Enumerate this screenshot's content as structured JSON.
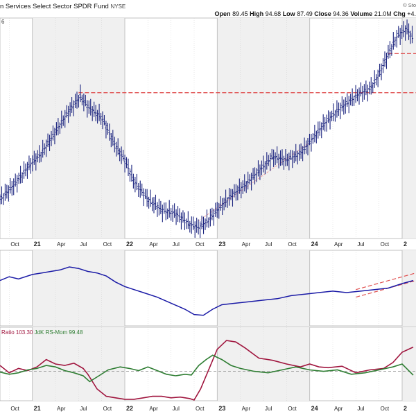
{
  "header": {
    "title": "n Services Select Sector SPDR Fund",
    "exchange": "NYSE",
    "watermark": "© Sto",
    "open_label": "Open",
    "open": "89.45",
    "high_label": "High",
    "high": "94.68",
    "low_label": "Low",
    "low": "87.49",
    "close_label": "Close",
    "close": "94.36",
    "volume_label": "Volume",
    "volume": "21.0M",
    "chg_label": "Chg",
    "chg": "+4."
  },
  "x_axis": {
    "ticks": [
      {
        "t": -0.25,
        "label": "Oct"
      },
      {
        "t": 0.0,
        "label": "21",
        "year": true
      },
      {
        "t": 0.25,
        "label": "Apr"
      },
      {
        "t": 0.5,
        "label": "Jul"
      },
      {
        "t": 0.75,
        "label": "Oct"
      },
      {
        "t": 1.0,
        "label": "22",
        "year": true
      },
      {
        "t": 1.25,
        "label": "Apr"
      },
      {
        "t": 1.5,
        "label": "Jul"
      },
      {
        "t": 1.75,
        "label": "Oct"
      },
      {
        "t": 2.0,
        "label": "23",
        "year": true
      },
      {
        "t": 2.25,
        "label": "Apr"
      },
      {
        "t": 2.5,
        "label": "Jul"
      },
      {
        "t": 2.75,
        "label": "Oct"
      },
      {
        "t": 3.0,
        "label": "24",
        "year": true
      },
      {
        "t": 3.25,
        "label": "Apr"
      },
      {
        "t": 3.5,
        "label": "Jul"
      },
      {
        "t": 3.75,
        "label": "Oct"
      },
      {
        "t": 4.0,
        "label": "2",
        "year": true
      }
    ]
  },
  "panels": {
    "price": {
      "corner_label": "6"
    },
    "momentum": {
      "ratio_legend": "Ratio 103.30",
      "mom_legend": "JdK RS-Mom 99.48"
    }
  },
  "colors": {
    "price": "#1a237e",
    "rs_line": "#1a1aa6",
    "ratio": "#a0153e",
    "momentum": "#2e7d32",
    "resistance": "#e05050",
    "grid": "#d0d0d0",
    "year_shade": "#f0f0f0"
  },
  "chart_data": [
    {
      "type": "line",
      "name": "price",
      "xlim": [
        -0.35,
        4.15
      ],
      "ylim": [
        40,
        102
      ],
      "points": [
        [
          -0.35,
          51
        ],
        [
          -0.2,
          55
        ],
        [
          -0.05,
          60
        ],
        [
          0.1,
          64
        ],
        [
          0.25,
          70
        ],
        [
          0.4,
          76
        ],
        [
          0.52,
          80
        ],
        [
          0.6,
          77
        ],
        [
          0.75,
          74
        ],
        [
          0.9,
          66
        ],
        [
          1.0,
          62
        ],
        [
          1.1,
          56
        ],
        [
          1.25,
          51
        ],
        [
          1.4,
          48
        ],
        [
          1.55,
          47
        ],
        [
          1.7,
          44
        ],
        [
          1.8,
          43
        ],
        [
          1.9,
          45
        ],
        [
          2.0,
          48
        ],
        [
          2.15,
          52
        ],
        [
          2.3,
          55
        ],
        [
          2.45,
          59
        ],
        [
          2.6,
          63
        ],
        [
          2.75,
          62
        ],
        [
          2.9,
          64
        ],
        [
          3.0,
          67
        ],
        [
          3.15,
          72
        ],
        [
          3.3,
          76
        ],
        [
          3.45,
          79
        ],
        [
          3.55,
          81
        ],
        [
          3.65,
          82
        ],
        [
          3.75,
          86
        ],
        [
          3.85,
          92
        ],
        [
          3.95,
          97
        ],
        [
          4.05,
          99
        ],
        [
          4.12,
          96
        ]
      ],
      "resistance_lines": [
        {
          "from": 0.5,
          "to": 4.15,
          "y": 81
        },
        {
          "from": 3.85,
          "to": 4.15,
          "y": 92
        }
      ],
      "trend_line": {
        "x1": 1.8,
        "y1": 45,
        "x2": 3.0,
        "y2": 67
      }
    },
    {
      "type": "line",
      "name": "rs_line",
      "xlim": [
        -0.35,
        4.15
      ],
      "ylim": [
        0,
        100
      ],
      "points": [
        [
          -0.35,
          60
        ],
        [
          -0.25,
          65
        ],
        [
          -0.15,
          62
        ],
        [
          0.0,
          68
        ],
        [
          0.1,
          70
        ],
        [
          0.2,
          72
        ],
        [
          0.3,
          74
        ],
        [
          0.4,
          78
        ],
        [
          0.5,
          76
        ],
        [
          0.6,
          72
        ],
        [
          0.7,
          70
        ],
        [
          0.8,
          66
        ],
        [
          0.9,
          58
        ],
        [
          1.0,
          52
        ],
        [
          1.1,
          48
        ],
        [
          1.2,
          44
        ],
        [
          1.35,
          38
        ],
        [
          1.5,
          30
        ],
        [
          1.65,
          22
        ],
        [
          1.75,
          15
        ],
        [
          1.85,
          14
        ],
        [
          1.95,
          22
        ],
        [
          2.05,
          28
        ],
        [
          2.2,
          30
        ],
        [
          2.35,
          32
        ],
        [
          2.5,
          34
        ],
        [
          2.65,
          36
        ],
        [
          2.8,
          40
        ],
        [
          2.95,
          42
        ],
        [
          3.1,
          44
        ],
        [
          3.25,
          46
        ],
        [
          3.4,
          44
        ],
        [
          3.55,
          46
        ],
        [
          3.7,
          48
        ],
        [
          3.85,
          50
        ],
        [
          4.0,
          56
        ],
        [
          4.12,
          60
        ]
      ],
      "trend_line": {
        "x1": 3.5,
        "y1": 38,
        "x2": 4.15,
        "y2": 60
      }
    },
    {
      "type": "line",
      "name": "rrg",
      "xlim": [
        -0.35,
        4.15
      ],
      "ylim": [
        96,
        106
      ],
      "baseline": 100,
      "series": [
        {
          "name": "Ratio",
          "points": [
            [
              -0.35,
              100.8
            ],
            [
              -0.25,
              99.8
            ],
            [
              -0.15,
              100.4
            ],
            [
              -0.05,
              100.1
            ],
            [
              0.05,
              100.6
            ],
            [
              0.15,
              101.6
            ],
            [
              0.25,
              101.0
            ],
            [
              0.35,
              100.8
            ],
            [
              0.45,
              101.1
            ],
            [
              0.55,
              100.4
            ],
            [
              0.6,
              99.6
            ],
            [
              0.7,
              97.6
            ],
            [
              0.8,
              96.6
            ],
            [
              0.9,
              96.4
            ],
            [
              1.0,
              96.2
            ],
            [
              1.1,
              96.2
            ],
            [
              1.2,
              96.4
            ],
            [
              1.3,
              96.6
            ],
            [
              1.4,
              96.6
            ],
            [
              1.5,
              96.4
            ],
            [
              1.6,
              96.5
            ],
            [
              1.7,
              96.3
            ],
            [
              1.75,
              96.1
            ],
            [
              1.82,
              97.6
            ],
            [
              1.92,
              100.6
            ],
            [
              2.0,
              103.0
            ],
            [
              2.1,
              104.2
            ],
            [
              2.2,
              104.0
            ],
            [
              2.3,
              103.2
            ],
            [
              2.45,
              101.8
            ],
            [
              2.6,
              101.5
            ],
            [
              2.75,
              101.0
            ],
            [
              2.9,
              100.6
            ],
            [
              3.0,
              101.0
            ],
            [
              3.1,
              100.6
            ],
            [
              3.2,
              100.5
            ],
            [
              3.35,
              100.7
            ],
            [
              3.5,
              99.8
            ],
            [
              3.65,
              100.2
            ],
            [
              3.8,
              100.4
            ],
            [
              3.9,
              101.2
            ],
            [
              4.0,
              102.6
            ],
            [
              4.12,
              103.3
            ]
          ]
        },
        {
          "name": "Mom",
          "points": [
            [
              -0.35,
              99.9
            ],
            [
              -0.25,
              99.6
            ],
            [
              -0.15,
              99.8
            ],
            [
              -0.05,
              100.2
            ],
            [
              0.05,
              100.4
            ],
            [
              0.15,
              100.8
            ],
            [
              0.25,
              100.6
            ],
            [
              0.35,
              100.1
            ],
            [
              0.45,
              99.8
            ],
            [
              0.55,
              99.4
            ],
            [
              0.62,
              98.6
            ],
            [
              0.72,
              99.4
            ],
            [
              0.82,
              100.2
            ],
            [
              0.95,
              100.6
            ],
            [
              1.05,
              100.4
            ],
            [
              1.15,
              100.1
            ],
            [
              1.25,
              100.6
            ],
            [
              1.35,
              100.1
            ],
            [
              1.45,
              99.6
            ],
            [
              1.55,
              99.4
            ],
            [
              1.65,
              99.6
            ],
            [
              1.72,
              99.5
            ],
            [
              1.8,
              100.8
            ],
            [
              1.88,
              101.6
            ],
            [
              1.95,
              102.2
            ],
            [
              2.05,
              101.6
            ],
            [
              2.15,
              100.8
            ],
            [
              2.25,
              100.4
            ],
            [
              2.4,
              100.0
            ],
            [
              2.55,
              99.8
            ],
            [
              2.7,
              100.2
            ],
            [
              2.85,
              100.6
            ],
            [
              3.0,
              100.2
            ],
            [
              3.15,
              100.0
            ],
            [
              3.3,
              100.2
            ],
            [
              3.45,
              99.6
            ],
            [
              3.6,
              99.8
            ],
            [
              3.75,
              100.2
            ],
            [
              3.9,
              100.6
            ],
            [
              4.0,
              101.0
            ],
            [
              4.12,
              99.48
            ]
          ]
        }
      ]
    }
  ]
}
